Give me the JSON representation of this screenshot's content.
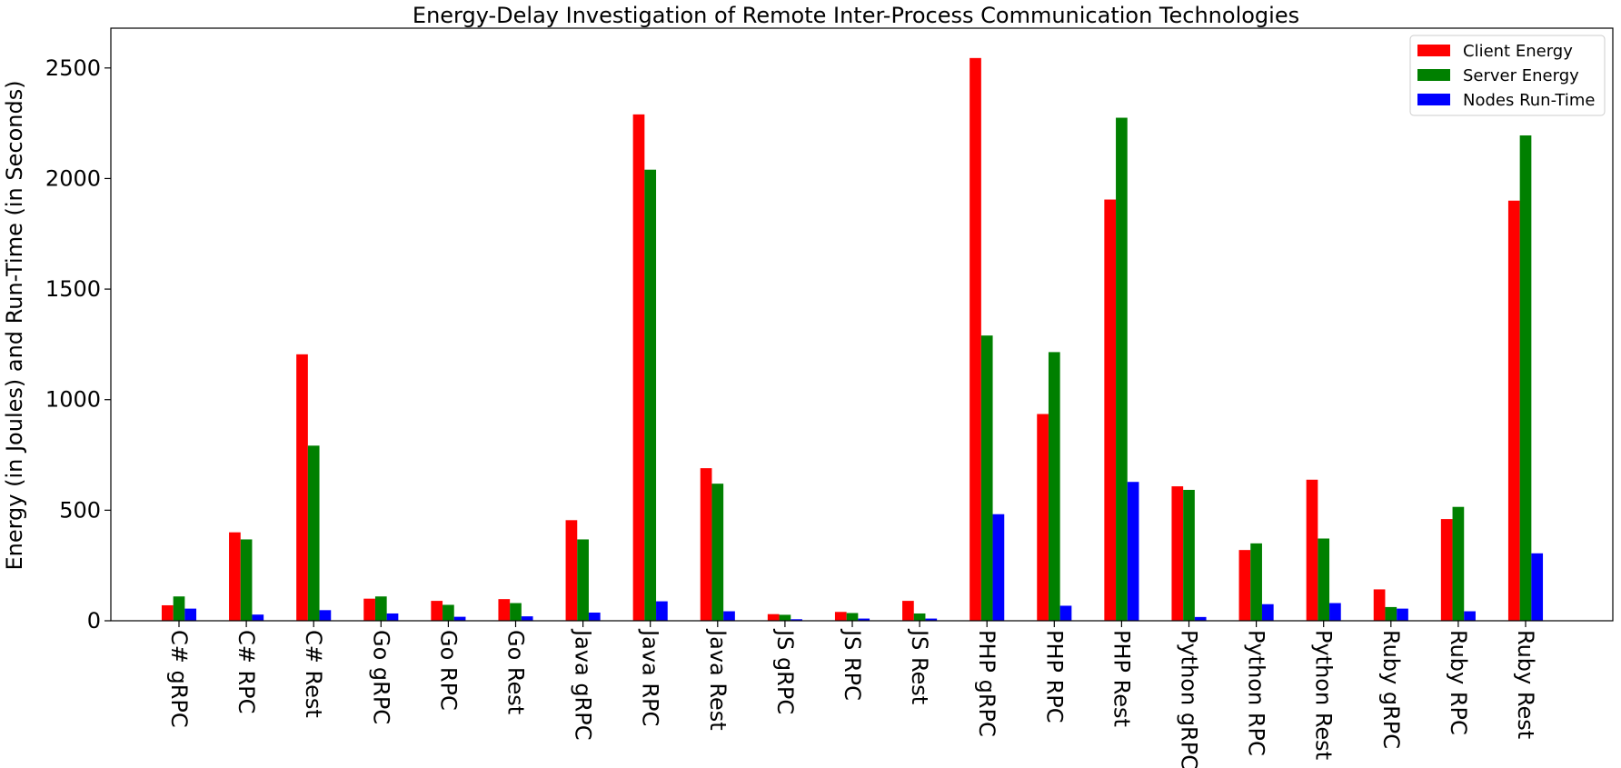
{
  "chart_data": {
    "type": "bar",
    "title": "Energy-Delay Investigation of Remote Inter-Process Communication Technologies",
    "xlabel": "",
    "ylabel": "Energy (in Joules) and Run-Time (in Seconds)",
    "ylim": [
      0,
      2680
    ],
    "yticks": [
      0,
      500,
      1000,
      1500,
      2000,
      2500
    ],
    "grid": false,
    "legend_position": "top-right",
    "categories": [
      "C# gRPC",
      "C# RPC",
      "C# Rest",
      "Go gRPC",
      "Go RPC",
      "Go Rest",
      "Java gRPC",
      "Java RPC",
      "Java Rest",
      "JS gRPC",
      "JS RPC",
      "JS Rest",
      "PHP gRPC",
      "PHP RPC",
      "PHP Rest",
      "Python gRPC",
      "Python RPC",
      "Python Rest",
      "Ruby gRPC",
      "Ruby RPC",
      "Ruby Rest"
    ],
    "series": [
      {
        "name": "Client Energy",
        "color": "#ff0000",
        "values": [
          70,
          400,
          1205,
          100,
          90,
          98,
          455,
          2290,
          690,
          30,
          40,
          90,
          2545,
          935,
          1905,
          608,
          320,
          638,
          142,
          460,
          1900
        ]
      },
      {
        "name": "Server Energy",
        "color": "#008000",
        "values": [
          110,
          368,
          792,
          110,
          72,
          80,
          368,
          2040,
          620,
          27,
          35,
          33,
          1290,
          1215,
          2275,
          592,
          350,
          372,
          62,
          515,
          2195
        ]
      },
      {
        "name": "Nodes Run-Time",
        "color": "#0000ff",
        "values": [
          55,
          28,
          48,
          33,
          18,
          20,
          37,
          88,
          43,
          7,
          10,
          10,
          482,
          68,
          628,
          17,
          75,
          80,
          55,
          43,
          305
        ]
      }
    ]
  }
}
